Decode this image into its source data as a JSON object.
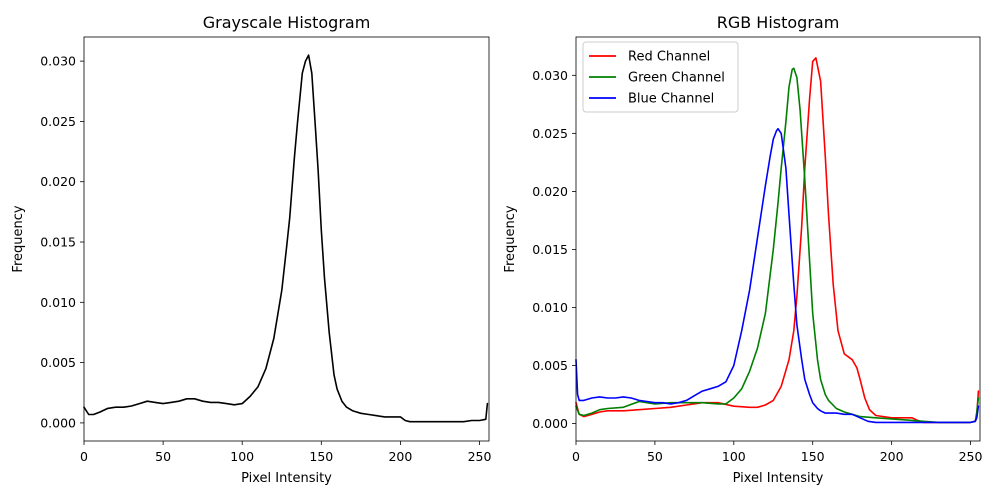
{
  "chart_data": [
    {
      "type": "line",
      "title": "Grayscale Histogram",
      "xlabel": "Pixel Intensity",
      "ylabel": "Frequency",
      "xlim": [
        0,
        256
      ],
      "ylim": [
        -0.0015,
        0.032
      ],
      "xticks": [
        0,
        50,
        100,
        150,
        200,
        250
      ],
      "yticks": [
        0.0,
        0.005,
        0.01,
        0.015,
        0.02,
        0.025,
        0.03
      ],
      "ytick_labels": [
        "0.000",
        "0.005",
        "0.010",
        "0.015",
        "0.020",
        "0.025",
        "0.030"
      ],
      "grid": false,
      "series": [
        {
          "color": "#000000",
          "x": [
            0,
            3,
            6,
            10,
            15,
            20,
            25,
            30,
            35,
            40,
            45,
            50,
            55,
            60,
            65,
            70,
            75,
            80,
            85,
            90,
            95,
            100,
            105,
            110,
            115,
            120,
            125,
            128,
            130,
            133,
            135,
            138,
            140,
            142,
            144,
            146,
            148,
            150,
            152,
            155,
            158,
            160,
            163,
            166,
            170,
            175,
            180,
            185,
            190,
            195,
            200,
            203,
            206,
            210,
            220,
            230,
            240,
            245,
            250,
            254,
            255
          ],
          "y": [
            0.0013,
            0.0007,
            0.0007,
            0.0009,
            0.0012,
            0.0013,
            0.0013,
            0.0014,
            0.0016,
            0.0018,
            0.0017,
            0.0016,
            0.0017,
            0.0018,
            0.002,
            0.002,
            0.0018,
            0.0017,
            0.0017,
            0.0016,
            0.0015,
            0.0016,
            0.0022,
            0.003,
            0.0045,
            0.007,
            0.011,
            0.0145,
            0.017,
            0.022,
            0.025,
            0.029,
            0.03,
            0.0305,
            0.029,
            0.025,
            0.021,
            0.016,
            0.012,
            0.0075,
            0.004,
            0.0028,
            0.0018,
            0.0013,
            0.001,
            0.0008,
            0.0007,
            0.0006,
            0.0005,
            0.0005,
            0.0005,
            0.0002,
            0.0001,
            0.0001,
            0.0001,
            0.0001,
            0.0001,
            0.0002,
            0.0002,
            0.0003,
            0.0016
          ]
        }
      ]
    },
    {
      "type": "line",
      "title": "RGB Histogram",
      "xlabel": "Pixel Intensity",
      "ylabel": "Frequency",
      "xlim": [
        0,
        256
      ],
      "ylim": [
        -0.0015,
        0.0333
      ],
      "xticks": [
        0,
        50,
        100,
        150,
        200,
        250
      ],
      "yticks": [
        0.0,
        0.005,
        0.01,
        0.015,
        0.02,
        0.025,
        0.03
      ],
      "ytick_labels": [
        "0.000",
        "0.005",
        "0.010",
        "0.015",
        "0.020",
        "0.025",
        "0.030"
      ],
      "grid": false,
      "legend": "top-left",
      "series": [
        {
          "name": "Red Channel",
          "color": "#ff0000",
          "x": [
            0,
            2,
            5,
            10,
            15,
            20,
            30,
            40,
            50,
            60,
            70,
            80,
            90,
            100,
            110,
            115,
            120,
            125,
            130,
            135,
            138,
            140,
            143,
            145,
            148,
            150,
            152,
            155,
            158,
            160,
            163,
            166,
            170,
            175,
            178,
            180,
            183,
            186,
            190,
            200,
            205,
            210,
            213,
            216,
            220,
            230,
            240,
            250,
            253,
            254,
            255
          ],
          "y": [
            0.0018,
            0.0008,
            0.0006,
            0.0008,
            0.001,
            0.0011,
            0.0011,
            0.0012,
            0.0013,
            0.0014,
            0.0016,
            0.0018,
            0.0018,
            0.0015,
            0.0014,
            0.0014,
            0.0016,
            0.002,
            0.0032,
            0.0055,
            0.008,
            0.011,
            0.017,
            0.022,
            0.028,
            0.0312,
            0.0315,
            0.0295,
            0.023,
            0.018,
            0.012,
            0.008,
            0.006,
            0.0055,
            0.0048,
            0.0038,
            0.0022,
            0.0012,
            0.0007,
            0.0005,
            0.0005,
            0.0005,
            0.0005,
            0.0003,
            0.0001,
            0.0001,
            0.0001,
            0.0001,
            0.0002,
            0.0008,
            0.0028
          ]
        },
        {
          "name": "Green Channel",
          "color": "#008000",
          "x": [
            0,
            2,
            5,
            10,
            15,
            20,
            30,
            40,
            50,
            60,
            70,
            80,
            90,
            95,
            100,
            105,
            110,
            115,
            120,
            125,
            128,
            130,
            133,
            135,
            137,
            138,
            140,
            142,
            145,
            148,
            150,
            153,
            155,
            158,
            160,
            165,
            170,
            175,
            180,
            190,
            200,
            210,
            220,
            230,
            240,
            250,
            253,
            254,
            255
          ],
          "y": [
            0.0015,
            0.0008,
            0.0007,
            0.0009,
            0.0012,
            0.0013,
            0.0014,
            0.0019,
            0.0017,
            0.0018,
            0.0018,
            0.0018,
            0.0017,
            0.0017,
            0.0022,
            0.003,
            0.0045,
            0.0065,
            0.0095,
            0.015,
            0.019,
            0.022,
            0.026,
            0.029,
            0.0305,
            0.0306,
            0.0298,
            0.027,
            0.021,
            0.014,
            0.0095,
            0.0055,
            0.0038,
            0.0025,
            0.002,
            0.0013,
            0.001,
            0.0008,
            0.0006,
            0.0005,
            0.0004,
            0.0003,
            0.0002,
            0.0001,
            0.0001,
            0.0001,
            0.0002,
            0.001,
            0.0022
          ]
        },
        {
          "name": "Blue Channel",
          "color": "#0000ff",
          "x": [
            0,
            1,
            2,
            5,
            10,
            15,
            20,
            25,
            30,
            35,
            40,
            45,
            50,
            55,
            60,
            65,
            70,
            75,
            80,
            85,
            90,
            95,
            100,
            105,
            110,
            115,
            120,
            123,
            125,
            127,
            128,
            130,
            133,
            135,
            138,
            140,
            143,
            145,
            148,
            150,
            153,
            155,
            158,
            160,
            165,
            170,
            175,
            180,
            185,
            190,
            200,
            210,
            220,
            230,
            240,
            250,
            253,
            254,
            255
          ],
          "y": [
            0.0055,
            0.0025,
            0.002,
            0.002,
            0.0022,
            0.0023,
            0.0022,
            0.0022,
            0.0023,
            0.0022,
            0.002,
            0.0019,
            0.0018,
            0.0018,
            0.0017,
            0.0018,
            0.002,
            0.0024,
            0.0028,
            0.003,
            0.0032,
            0.0036,
            0.005,
            0.008,
            0.0115,
            0.016,
            0.0205,
            0.023,
            0.0245,
            0.0252,
            0.0254,
            0.025,
            0.022,
            0.018,
            0.012,
            0.0085,
            0.0055,
            0.0038,
            0.0025,
            0.0018,
            0.0013,
            0.0011,
            0.0009,
            0.0009,
            0.0009,
            0.0008,
            0.0008,
            0.0005,
            0.0002,
            0.0001,
            0.0001,
            0.0001,
            0.0001,
            0.0001,
            0.0001,
            0.0001,
            0.0002,
            0.0005,
            0.0015
          ]
        }
      ]
    }
  ]
}
